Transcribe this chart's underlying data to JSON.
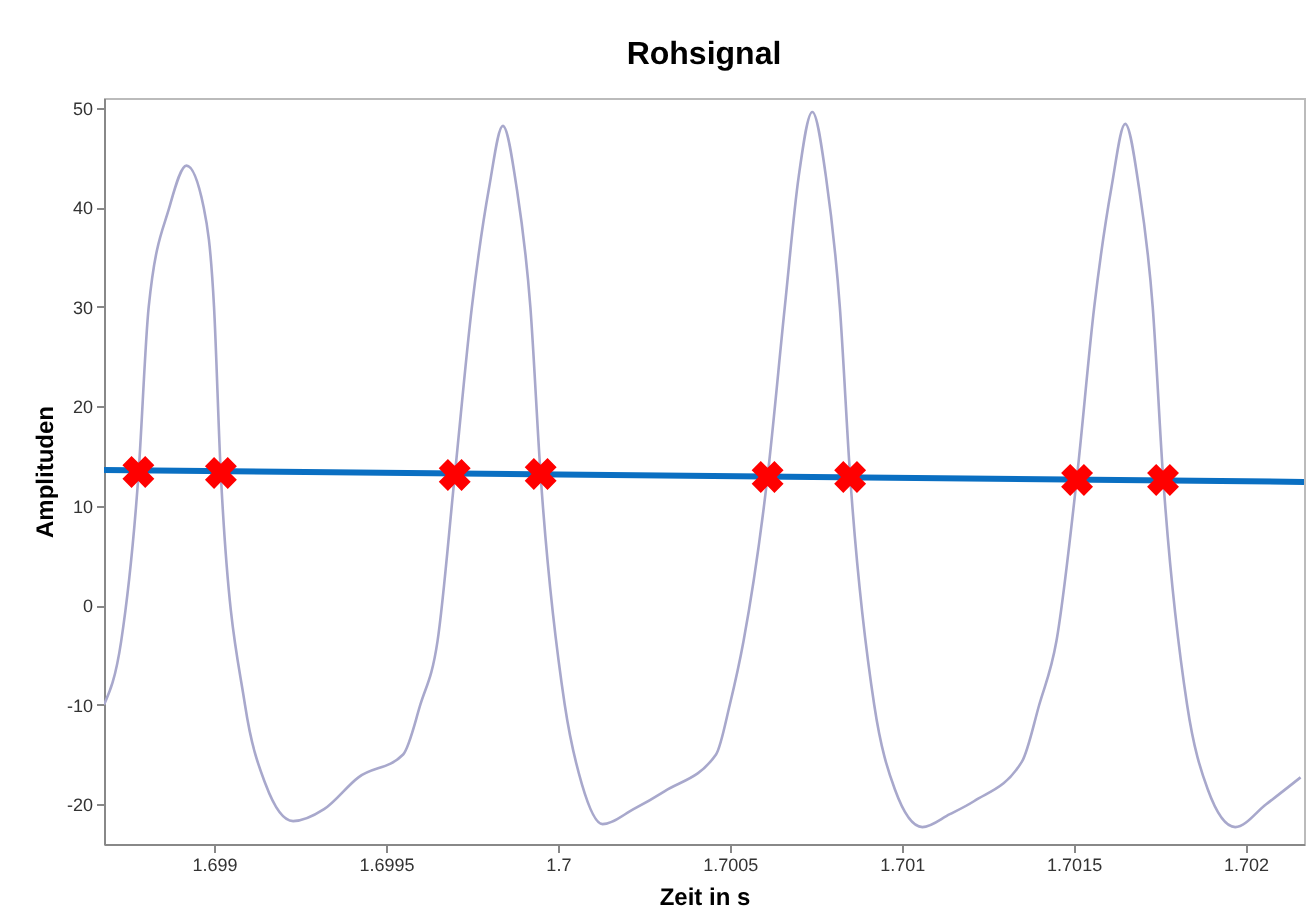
{
  "chart_data": {
    "type": "line",
    "title": "Rohsignal",
    "xlabel": "Zeit in s",
    "ylabel": "Amplituden",
    "xlim": [
      1.69868,
      1.70217
    ],
    "ylim": [
      -24,
      51
    ],
    "xticks": [
      1.699,
      1.6995,
      1.7,
      1.7005,
      1.701,
      1.7015,
      1.702
    ],
    "yticks": [
      -20,
      -10,
      0,
      10,
      20,
      30,
      40,
      50
    ],
    "grid": false,
    "series": [
      {
        "color": "#a8a8cc",
        "x": [
          1.69868,
          1.69873,
          1.69878,
          1.69881,
          1.69887,
          1.69892,
          1.69897,
          1.699,
          1.69902,
          1.69909,
          1.69915,
          1.69923,
          1.69932,
          1.69942,
          1.69955,
          1.6996,
          1.69965,
          1.6997,
          1.69975,
          1.6998,
          1.69984,
          1.69988,
          1.69992,
          1.69995,
          1.70002,
          1.70007,
          1.70013,
          1.70022,
          1.70031,
          1.70046,
          1.7005,
          1.70054,
          1.70061,
          1.70066,
          1.7007,
          1.70074,
          1.70078,
          1.70082,
          1.70085,
          1.70092,
          1.70098,
          1.70106,
          1.70114,
          1.70121,
          1.70135,
          1.7014,
          1.70145,
          1.70151,
          1.70156,
          1.70161,
          1.70165,
          1.70169,
          1.70173,
          1.70176,
          1.70183,
          1.70189,
          1.70197,
          1.70206,
          1.70216
        ],
        "values": [
          -10,
          -3.6,
          13,
          30,
          40,
          44.2,
          40,
          30,
          13,
          -10,
          -18,
          -21.7,
          -20.5,
          -17.3,
          -15,
          -10,
          -3.6,
          13,
          30,
          42,
          48.2,
          42,
          30,
          13,
          -10,
          -18,
          -22,
          -20.5,
          -18.7,
          -15,
          -10,
          -3.6,
          13,
          30,
          43,
          49.6,
          43,
          30,
          13,
          -10,
          -18.5,
          -22.3,
          -21,
          -19.7,
          -15.7,
          -10,
          -3.6,
          13,
          30,
          42,
          48.4,
          42,
          30,
          13,
          -10,
          -18.5,
          -22.3,
          -20,
          -17.3
        ]
      },
      {
        "color": "#0a6fc2",
        "x": [
          1.69868,
          1.70217
        ],
        "values": [
          13.6,
          12.4
        ]
      },
      {
        "type": "scatter",
        "color": "#ff0000",
        "marker": "cross",
        "x": [
          1.69878,
          1.69902,
          1.6997,
          1.69995,
          1.70061,
          1.70085,
          1.70151,
          1.70176
        ],
        "values": [
          13.4,
          13.3,
          13.1,
          13.2,
          12.9,
          12.9,
          12.6,
          12.6
        ]
      }
    ]
  }
}
